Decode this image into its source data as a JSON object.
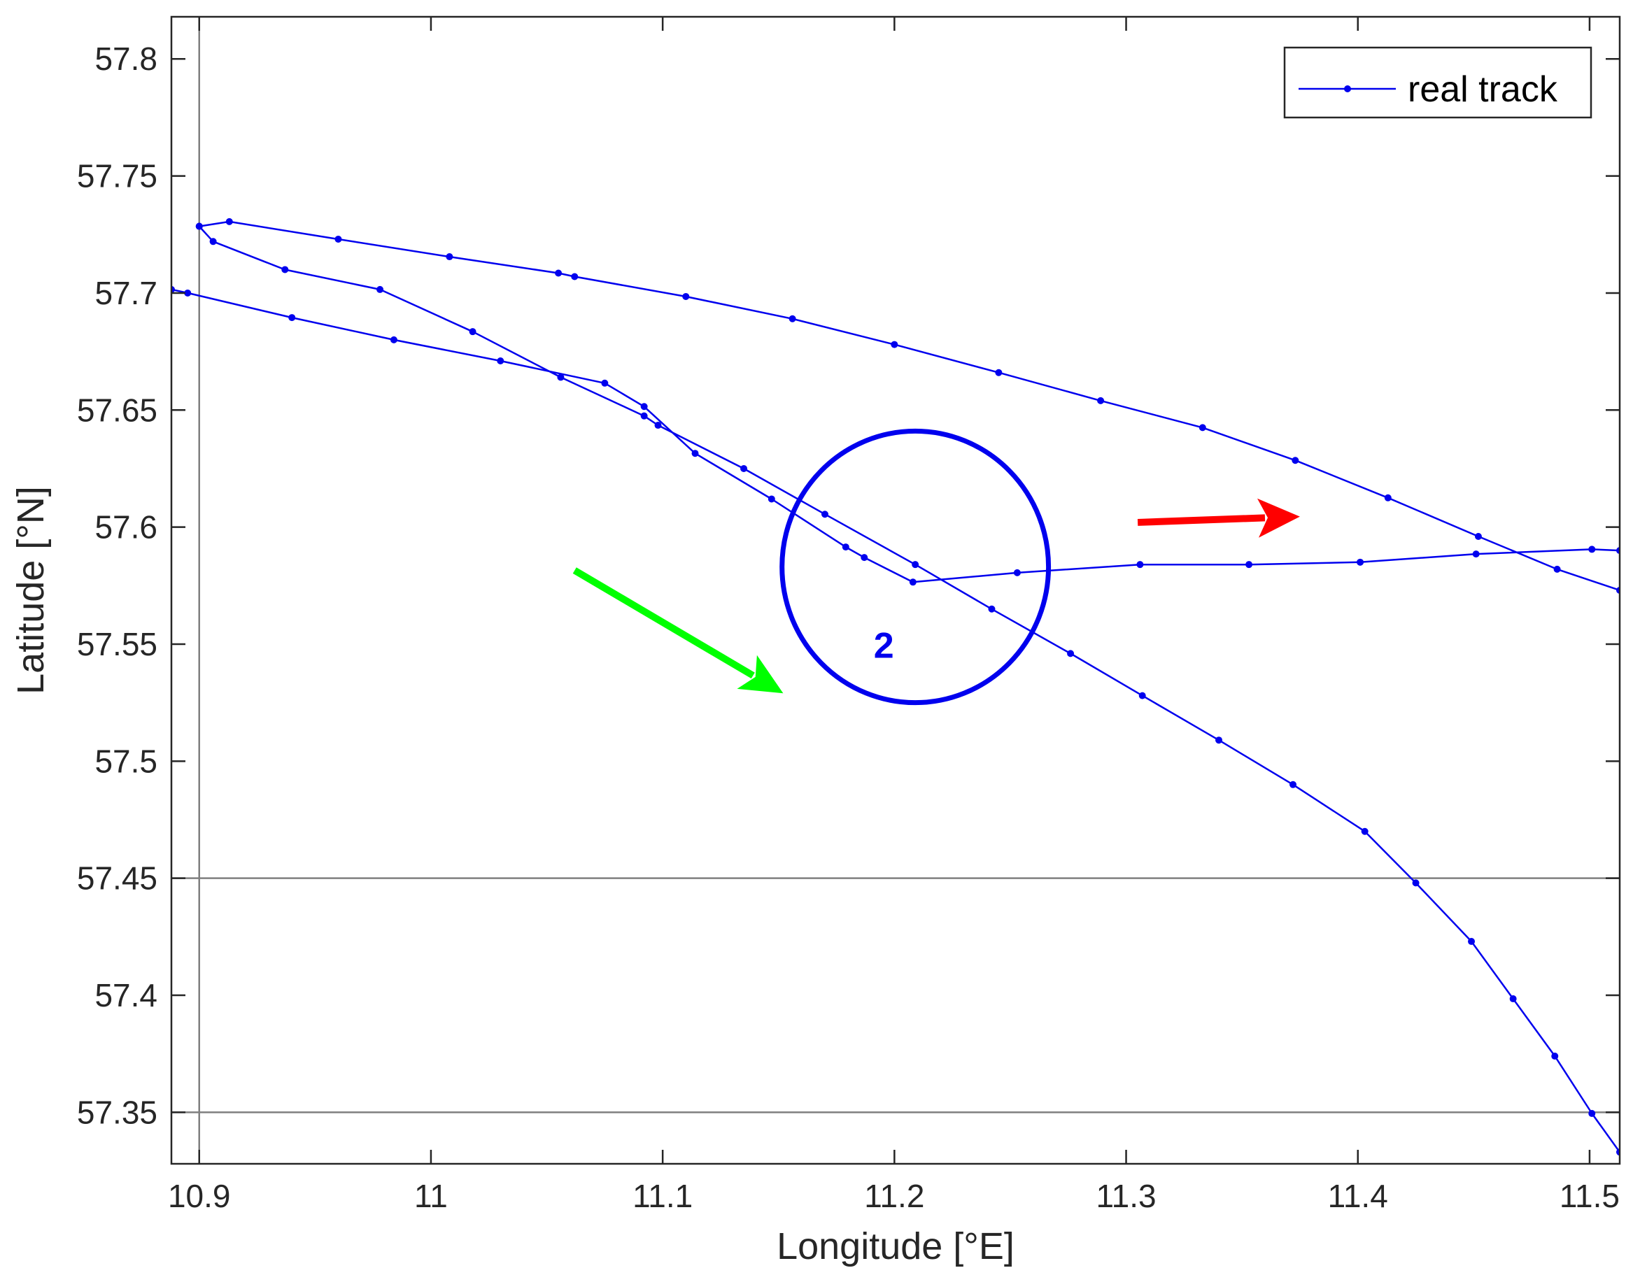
{
  "chart_data": {
    "type": "line",
    "xlabel": "Longitude [°E]",
    "ylabel": "Latitude [°N]",
    "xlim": [
      10.888,
      11.513
    ],
    "ylim": [
      57.328,
      57.818
    ],
    "xticks": [
      10.9,
      11,
      11.1,
      11.2,
      11.3,
      11.4,
      11.5
    ],
    "xtick_labels": [
      "10.9",
      "11",
      "11.1",
      "11.2",
      "11.3",
      "11.4",
      "11.5"
    ],
    "yticks": [
      57.35,
      57.4,
      57.45,
      57.5,
      57.55,
      57.6,
      57.65,
      57.7,
      57.75,
      57.8
    ],
    "ytick_labels": [
      "57.35",
      "57.4",
      "57.45",
      "57.5",
      "57.55",
      "57.6",
      "57.65",
      "57.7",
      "57.75",
      "57.8"
    ],
    "grid": false,
    "reference_lines": {
      "vertical_x": [
        10.9
      ],
      "horizontal_y": [
        57.45,
        57.35
      ]
    },
    "legend": {
      "position": "top-right",
      "entries": [
        "real track"
      ]
    },
    "series": [
      {
        "name": "real track",
        "color": "#0000ee",
        "marker": "dot",
        "segments": [
          [
            [
              10.888,
              57.7015
            ],
            [
              10.895,
              57.7
            ],
            [
              10.94,
              57.6895
            ],
            [
              10.984,
              57.68
            ],
            [
              11.03,
              57.671
            ],
            [
              11.075,
              57.6615
            ],
            [
              11.092,
              57.6515
            ],
            [
              11.114,
              57.6315
            ],
            [
              11.147,
              57.612
            ],
            [
              11.179,
              57.5915
            ],
            [
              11.187,
              57.587
            ],
            [
              11.208,
              57.5765
            ],
            [
              11.253,
              57.5805
            ],
            [
              11.306,
              57.584
            ],
            [
              11.353,
              57.584
            ],
            [
              11.401,
              57.585
            ],
            [
              11.451,
              57.5885
            ],
            [
              11.501,
              57.5905
            ],
            [
              11.513,
              57.59
            ]
          ],
          [
            [
              10.9,
              57.7285
            ],
            [
              10.913,
              57.7305
            ],
            [
              10.96,
              57.723
            ],
            [
              11.008,
              57.7155
            ],
            [
              11.055,
              57.7085
            ],
            [
              11.062,
              57.707
            ],
            [
              11.11,
              57.6985
            ],
            [
              11.156,
              57.689
            ],
            [
              11.2,
              57.678
            ],
            [
              11.245,
              57.666
            ],
            [
              11.289,
              57.654
            ],
            [
              11.333,
              57.6425
            ],
            [
              11.373,
              57.6285
            ],
            [
              11.413,
              57.6125
            ],
            [
              11.452,
              57.596
            ],
            [
              11.486,
              57.582
            ],
            [
              11.513,
              57.573
            ]
          ],
          [
            [
              10.9,
              57.7285
            ],
            [
              10.906,
              57.722
            ],
            [
              10.937,
              57.71
            ],
            [
              10.978,
              57.7015
            ],
            [
              11.018,
              57.6835
            ],
            [
              11.056,
              57.664
            ],
            [
              11.092,
              57.6475
            ],
            [
              11.098,
              57.6435
            ],
            [
              11.135,
              57.625
            ],
            [
              11.17,
              57.6055
            ],
            [
              11.209,
              57.584
            ],
            [
              11.242,
              57.565
            ],
            [
              11.276,
              57.546
            ],
            [
              11.307,
              57.528
            ],
            [
              11.34,
              57.509
            ],
            [
              11.372,
              57.49
            ],
            [
              11.403,
              57.47
            ],
            [
              11.425,
              57.448
            ],
            [
              11.449,
              57.423
            ],
            [
              11.467,
              57.3985
            ],
            [
              11.485,
              57.374
            ],
            [
              11.501,
              57.3495
            ],
            [
              11.513,
              57.333
            ]
          ]
        ]
      }
    ],
    "annotations": [
      {
        "type": "circle",
        "label": "2",
        "center": [
          11.209,
          57.583
        ],
        "radius_x": 0.0575,
        "radius_y": 0.058,
        "color": "#0000ee"
      },
      {
        "type": "arrow",
        "from": [
          11.062,
          57.5815
        ],
        "to": [
          11.152,
          57.529
        ],
        "color": "#00ff00"
      },
      {
        "type": "arrow",
        "from": [
          11.305,
          57.602
        ],
        "to": [
          11.375,
          57.6045
        ],
        "color": "#ff0000"
      }
    ]
  }
}
